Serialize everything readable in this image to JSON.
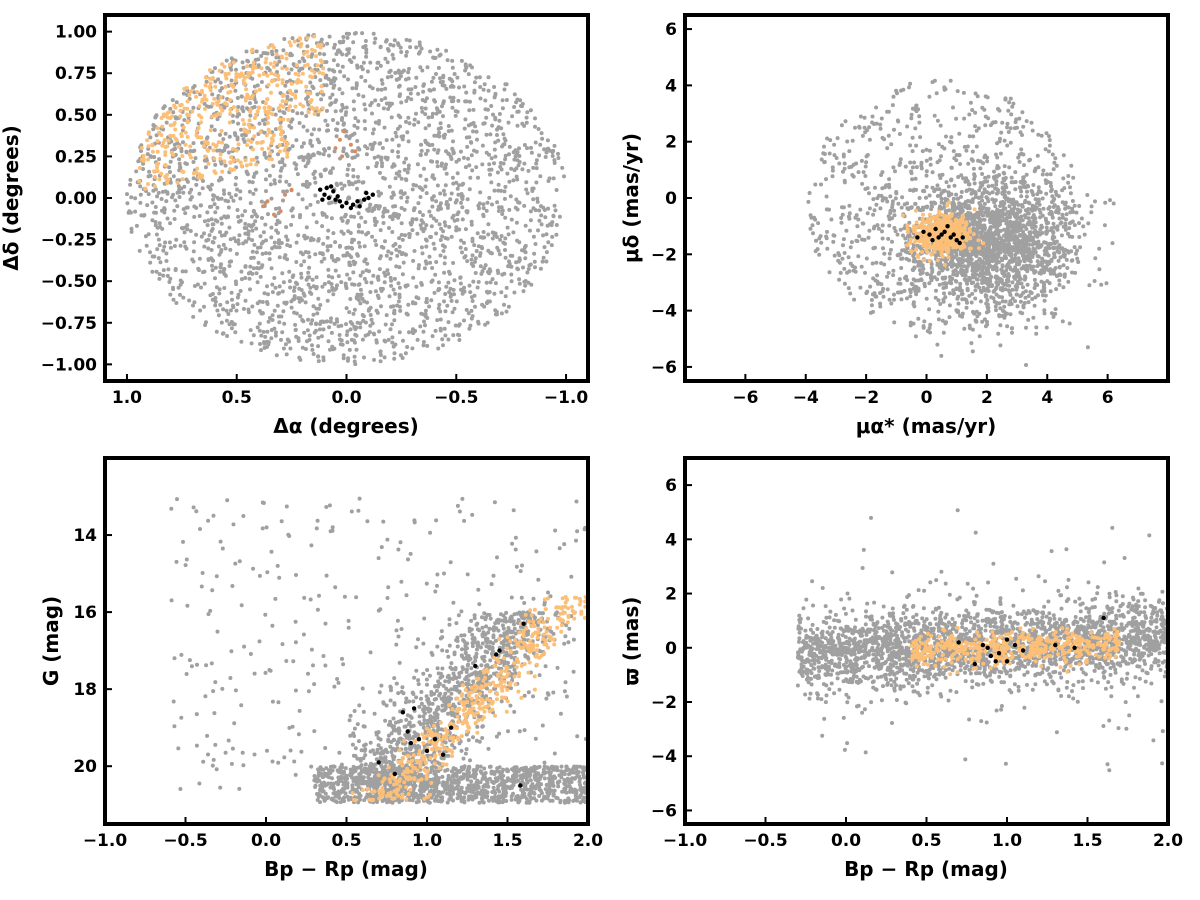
{
  "colors": {
    "field": "#a0a0a0",
    "members": "#fbbf78",
    "substructure": "#d98c5f",
    "core": "#000000"
  },
  "chart_data": [
    {
      "type": "scatter",
      "xlabel": "Δα (degrees)",
      "ylabel": "Δδ (degrees)",
      "xlim": [
        1.1,
        -1.1
      ],
      "ylim": [
        -1.1,
        1.1
      ],
      "x_inverted": true,
      "xticks": [
        1.0,
        0.5,
        0.0,
        -0.5,
        -1.0
      ],
      "xtick_labels": [
        "1.0",
        "0.5",
        "0.0",
        "−0.5",
        "−1.0"
      ],
      "yticks": [
        1.0,
        0.75,
        0.5,
        0.25,
        0.0,
        -0.25,
        -0.5,
        -0.75,
        -1.0
      ],
      "ytick_labels": [
        "1.00",
        "0.75",
        "0.50",
        "0.25",
        "0.00",
        "−0.25",
        "−0.50",
        "−0.75",
        "−1.00"
      ],
      "series": [
        {
          "color": "field",
          "distribution": "disk",
          "center": [
            0.0,
            0.0
          ],
          "radius": [
            1.0,
            1.0
          ],
          "count": 2600
        },
        {
          "color": "members",
          "distribution": "band",
          "center": [
            0.55,
            0.55
          ],
          "spread": [
            0.25,
            0.2
          ],
          "count": 420
        },
        {
          "color": "substructure",
          "points": [
            [
              0.38,
              -0.05
            ],
            [
              0.36,
              -0.02
            ],
            [
              0.33,
              -0.1
            ],
            [
              0.3,
              -0.08
            ],
            [
              0.28,
              0.02
            ],
            [
              0.25,
              0.05
            ],
            [
              0.05,
              0.3
            ],
            [
              0.03,
              0.35
            ],
            [
              0.01,
              0.4
            ],
            [
              -0.02,
              0.32
            ],
            [
              0.02,
              0.25
            ],
            [
              -0.04,
              0.28
            ]
          ]
        },
        {
          "color": "core",
          "points": [
            [
              0.12,
              0.05
            ],
            [
              0.1,
              0.02
            ],
            [
              0.08,
              0.0
            ],
            [
              0.05,
              -0.01
            ],
            [
              0.03,
              -0.02
            ],
            [
              0.0,
              -0.03
            ],
            [
              -0.03,
              -0.04
            ],
            [
              -0.05,
              -0.02
            ],
            [
              -0.08,
              -0.01
            ],
            [
              -0.1,
              0.0
            ],
            [
              -0.12,
              0.02
            ],
            [
              0.09,
              0.06
            ],
            [
              0.06,
              0.04
            ],
            [
              -0.06,
              -0.05
            ],
            [
              0.11,
              -0.01
            ],
            [
              0.07,
              0.07
            ],
            [
              -0.02,
              -0.06
            ],
            [
              0.04,
              0.01
            ],
            [
              -0.09,
              0.03
            ],
            [
              0.02,
              -0.05
            ]
          ]
        }
      ]
    },
    {
      "type": "scatter",
      "xlabel": "μα* (mas/yr)",
      "ylabel": "μδ (mas/yr)",
      "xlim": [
        -8,
        8
      ],
      "ylim": [
        -6.5,
        6.5
      ],
      "xticks": [
        -6,
        -4,
        -2,
        0,
        2,
        4,
        6
      ],
      "xtick_labels": [
        "−6",
        "−4",
        "−2",
        "0",
        "2",
        "4",
        "6"
      ],
      "yticks": [
        6,
        4,
        2,
        0,
        -2,
        -4,
        -6
      ],
      "ytick_labels": [
        "6",
        "4",
        "2",
        "0",
        "−2",
        "−4",
        "−6"
      ],
      "series": [
        {
          "color": "field",
          "distribution": "disk",
          "center": [
            0.5,
            -0.3
          ],
          "radius": [
            4.5,
            4.5
          ],
          "count": 700
        },
        {
          "color": "field",
          "distribution": "gauss",
          "center": [
            2.0,
            -1.6
          ],
          "spread": [
            1.4,
            1.2
          ],
          "count": 1800
        },
        {
          "color": "members",
          "distribution": "gauss",
          "center": [
            0.5,
            -1.3
          ],
          "spread": [
            0.45,
            0.35
          ],
          "count": 450
        },
        {
          "color": "core",
          "points": [
            [
              -0.3,
              -1.4
            ],
            [
              -0.1,
              -1.2
            ],
            [
              0.1,
              -1.3
            ],
            [
              0.3,
              -1.1
            ],
            [
              0.5,
              -1.3
            ],
            [
              0.7,
              -1.0
            ],
            [
              0.8,
              -1.4
            ],
            [
              1.0,
              -1.5
            ],
            [
              1.1,
              -1.6
            ],
            [
              0.6,
              -1.2
            ],
            [
              0.9,
              -1.3
            ],
            [
              0.2,
              -1.5
            ],
            [
              1.2,
              -1.4
            ],
            [
              0.4,
              -1.4
            ]
          ]
        }
      ]
    },
    {
      "type": "scatter",
      "xlabel": "Bp − Rp (mag)",
      "ylabel": "G (mag)",
      "xlim": [
        -1.0,
        2.0
      ],
      "ylim": [
        12.0,
        21.5
      ],
      "y_inverted": true,
      "xticks": [
        -1.0,
        -0.5,
        0.0,
        0.5,
        1.0,
        1.5,
        2.0
      ],
      "xtick_labels": [
        "−1.0",
        "−0.5",
        "0.0",
        "0.5",
        "1.0",
        "1.5",
        "2.0"
      ],
      "yticks": [
        20,
        18,
        16,
        14
      ],
      "ytick_labels": [
        "20",
        "18",
        "16",
        "14"
      ],
      "series": [
        {
          "color": "field",
          "distribution": "cmd",
          "count": 2400
        },
        {
          "color": "members",
          "distribution": "cmd_narrow",
          "count": 450
        },
        {
          "color": "core",
          "points": [
            [
              0.7,
              19.9
            ],
            [
              0.8,
              20.2
            ],
            [
              0.9,
              19.4
            ],
            [
              0.95,
              19.3
            ],
            [
              1.0,
              19.6
            ],
            [
              1.05,
              19.3
            ],
            [
              1.1,
              19.7
            ],
            [
              1.15,
              19.0
            ],
            [
              0.85,
              18.6
            ],
            [
              0.92,
              18.5
            ],
            [
              1.3,
              17.4
            ],
            [
              1.43,
              17.1
            ],
            [
              1.45,
              17.0
            ],
            [
              1.6,
              16.3
            ],
            [
              1.58,
              20.5
            ],
            [
              0.88,
              19.1
            ]
          ]
        }
      ]
    },
    {
      "type": "scatter",
      "xlabel": "Bp − Rp (mag)",
      "ylabel": "ϖ (mas)",
      "xlim": [
        -1.0,
        2.0
      ],
      "ylim": [
        -6.5,
        7.0
      ],
      "xticks": [
        -1.0,
        -0.5,
        0.0,
        0.5,
        1.0,
        1.5,
        2.0
      ],
      "xtick_labels": [
        "−1.0",
        "−0.5",
        "0.0",
        "0.5",
        "1.0",
        "1.5",
        "2.0"
      ],
      "yticks": [
        6,
        4,
        2,
        0,
        -2,
        -4,
        -6
      ],
      "ytick_labels": [
        "6",
        "4",
        "2",
        "0",
        "−2",
        "−4",
        "−6"
      ],
      "series": [
        {
          "color": "field",
          "distribution": "plx",
          "count": 2400
        },
        {
          "color": "members",
          "distribution": "plx_narrow",
          "count": 450
        },
        {
          "color": "core",
          "points": [
            [
              0.7,
              0.2
            ],
            [
              0.8,
              -0.6
            ],
            [
              0.85,
              0.1
            ],
            [
              0.9,
              -0.3
            ],
            [
              0.95,
              -0.2
            ],
            [
              1.0,
              0.3
            ],
            [
              1.05,
              0.1
            ],
            [
              1.1,
              -0.1
            ],
            [
              0.93,
              -0.5
            ],
            [
              1.3,
              0.1
            ],
            [
              1.6,
              1.1
            ],
            [
              1.42,
              0.0
            ],
            [
              1.0,
              -0.5
            ],
            [
              0.88,
              0.0
            ]
          ]
        }
      ]
    }
  ]
}
